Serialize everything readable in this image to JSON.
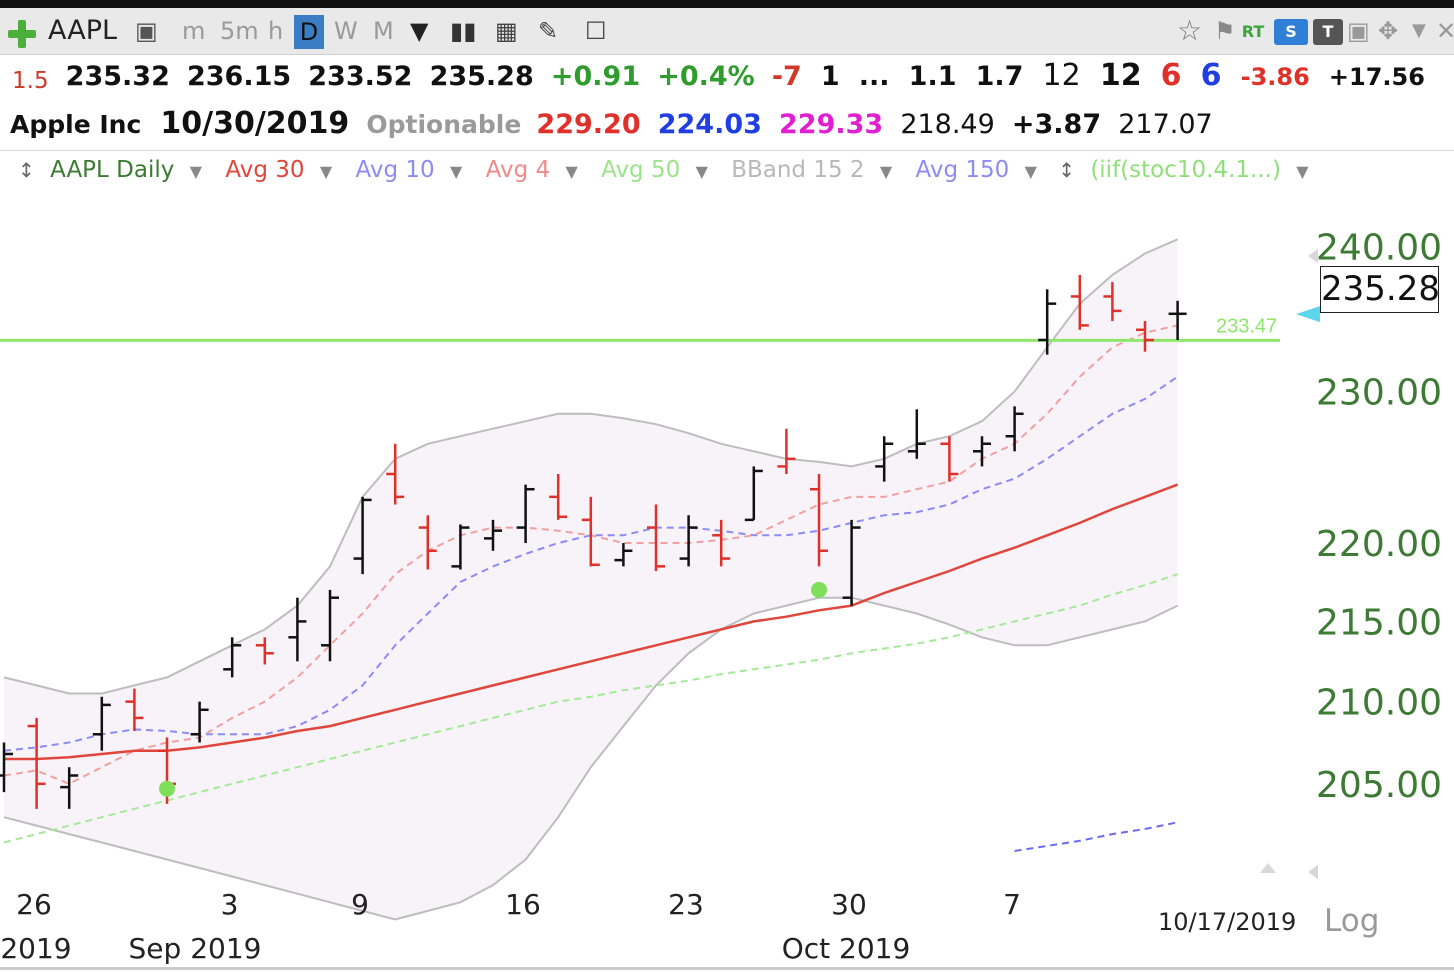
{
  "toolbar": {
    "symbol": "AAPL",
    "intervals": [
      "m",
      "5m",
      "h",
      "D",
      "W",
      "M"
    ],
    "selected_interval": "D",
    "rt_label": "RT",
    "s_label": "S",
    "t_label": "T"
  },
  "quote_row": {
    "lead": "1.5",
    "open": "235.32",
    "high": "236.15",
    "low": "233.52",
    "close": "235.28",
    "change": "+0.91",
    "change_pct": "+0.4%",
    "v1": "-7",
    "v2": "1",
    "v3": "...",
    "v4": "1.1",
    "v5": "1.7",
    "v6": "12",
    "v7": "12",
    "v8": "6",
    "v9": "6",
    "v10": "-3.86",
    "v11": "+17.56"
  },
  "info_row": {
    "name": "Apple Inc",
    "date": "10/30/2019",
    "optionable": "Optionable",
    "a": "229.20",
    "b": "224.03",
    "c": "229.33",
    "d": "218.49",
    "e": "+3.87",
    "f": "217.07"
  },
  "legend": {
    "main": "AAPL Daily",
    "items": [
      {
        "label": "Avg 30",
        "color": "#e0463c"
      },
      {
        "label": "Avg 10",
        "color": "#8c8cf2"
      },
      {
        "label": "Avg 4",
        "color": "#f08a8a"
      },
      {
        "label": "Avg 50",
        "color": "#9be38a"
      },
      {
        "label": "BBand 15 2",
        "color": "#b8b8b8"
      },
      {
        "label": "Avg 150",
        "color": "#8c8cf2"
      }
    ],
    "indicator": "(iif(stoc10.4.1...)",
    "indicator_color": "#8fe07a"
  },
  "colors": {
    "up_bar": "#111111",
    "down_bar": "#e0302a",
    "avg30": "#e0463c",
    "avg10": "#8c8cf2",
    "avg4": "#f0a0a0",
    "avg50": "#a6e89a",
    "avg150": "#6b6bf0",
    "bband": "#bdbdbd",
    "band_fill": "#f7f3f8",
    "level_line": "#8ee66a",
    "signal_dot": "#7ee05a",
    "axis_text": "#3d7a34"
  },
  "chart_data": {
    "type": "ohlc",
    "price_axis": {
      "ticks": [
        "240.00",
        "230.00",
        "220.00",
        "215.00",
        "210.00",
        "205.00"
      ],
      "range": [
        200,
        244
      ]
    },
    "last_price": "235.28",
    "level_line_value": 233.47,
    "level_line_label": "233.47",
    "x_ticks": [
      {
        "label": "26",
        "bar": 0
      },
      {
        "label": "3",
        "bar": 6
      },
      {
        "label": "9",
        "bar": 10
      },
      {
        "label": "16",
        "bar": 15
      },
      {
        "label": "23",
        "bar": 20
      },
      {
        "label": "30",
        "bar": 25
      },
      {
        "label": "7",
        "bar": 30
      }
    ],
    "month_labels": [
      {
        "label": "2019",
        "bar": 1
      },
      {
        "label": "Sep 2019",
        "bar": 6
      },
      {
        "label": "Oct 2019",
        "bar": 26
      }
    ],
    "bottom_date": "10/17/2019",
    "scale_label": "Log",
    "bars": [
      {
        "o": 205.5,
        "h": 207.5,
        "l": 204.5,
        "c": 206.8,
        "dir": "up"
      },
      {
        "o": 208.5,
        "h": 209.0,
        "l": 203.5,
        "c": 205.0,
        "dir": "down"
      },
      {
        "o": 204.8,
        "h": 206.0,
        "l": 203.5,
        "c": 205.5,
        "dir": "up"
      },
      {
        "o": 208.0,
        "h": 210.3,
        "l": 207.0,
        "c": 209.8,
        "dir": "up"
      },
      {
        "o": 210.0,
        "h": 210.8,
        "l": 208.2,
        "c": 209.0,
        "dir": "down"
      },
      {
        "o": 207.0,
        "h": 207.8,
        "l": 203.8,
        "c": 205.0,
        "dir": "down"
      },
      {
        "o": 208.0,
        "h": 210.0,
        "l": 207.5,
        "c": 209.5,
        "dir": "up"
      },
      {
        "o": 212.0,
        "h": 214.0,
        "l": 211.5,
        "c": 213.5,
        "dir": "up"
      },
      {
        "o": 213.5,
        "h": 214.0,
        "l": 212.3,
        "c": 213.0,
        "dir": "down"
      },
      {
        "o": 214.0,
        "h": 216.5,
        "l": 212.5,
        "c": 215.0,
        "dir": "up"
      },
      {
        "o": 213.5,
        "h": 217.0,
        "l": 212.5,
        "c": 216.5,
        "dir": "up"
      },
      {
        "o": 219.0,
        "h": 223.0,
        "l": 218.0,
        "c": 222.8,
        "dir": "up"
      },
      {
        "o": 224.5,
        "h": 226.5,
        "l": 222.5,
        "c": 223.0,
        "dir": "down"
      },
      {
        "o": 221.0,
        "h": 221.8,
        "l": 218.3,
        "c": 219.5,
        "dir": "down"
      },
      {
        "o": 218.5,
        "h": 221.2,
        "l": 218.3,
        "c": 221.0,
        "dir": "up"
      },
      {
        "o": 220.3,
        "h": 221.5,
        "l": 219.5,
        "c": 220.8,
        "dir": "up"
      },
      {
        "o": 221.0,
        "h": 223.8,
        "l": 220.0,
        "c": 223.5,
        "dir": "up"
      },
      {
        "o": 223.0,
        "h": 224.5,
        "l": 221.5,
        "c": 221.7,
        "dir": "down"
      },
      {
        "o": 221.5,
        "h": 223.0,
        "l": 218.5,
        "c": 218.6,
        "dir": "down"
      },
      {
        "o": 218.9,
        "h": 220.0,
        "l": 218.5,
        "c": 219.5,
        "dir": "up"
      },
      {
        "o": 221.0,
        "h": 222.5,
        "l": 218.2,
        "c": 218.5,
        "dir": "down"
      },
      {
        "o": 219.0,
        "h": 221.8,
        "l": 218.5,
        "c": 221.0,
        "dir": "up"
      },
      {
        "o": 220.5,
        "h": 221.5,
        "l": 218.5,
        "c": 219.0,
        "dir": "down"
      },
      {
        "o": 221.5,
        "h": 225.0,
        "l": 221.5,
        "c": 224.7,
        "dir": "up"
      },
      {
        "o": 225.0,
        "h": 227.5,
        "l": 224.5,
        "c": 225.5,
        "dir": "down"
      },
      {
        "o": 223.5,
        "h": 224.5,
        "l": 218.5,
        "c": 219.5,
        "dir": "down"
      },
      {
        "o": 216.5,
        "h": 221.5,
        "l": 216.0,
        "c": 221.0,
        "dir": "up"
      },
      {
        "o": 225.0,
        "h": 227.0,
        "l": 224.0,
        "c": 226.5,
        "dir": "up"
      },
      {
        "o": 226.0,
        "h": 228.8,
        "l": 225.5,
        "c": 226.5,
        "dir": "up"
      },
      {
        "o": 226.5,
        "h": 227.0,
        "l": 224.0,
        "c": 224.5,
        "dir": "down"
      },
      {
        "o": 226.0,
        "h": 227.0,
        "l": 225.0,
        "c": 226.5,
        "dir": "up"
      },
      {
        "o": 227.0,
        "h": 229.0,
        "l": 226.0,
        "c": 228.5,
        "dir": "up"
      },
      {
        "o": 233.5,
        "h": 237.0,
        "l": 232.5,
        "c": 236.0,
        "dir": "up"
      },
      {
        "o": 236.5,
        "h": 238.0,
        "l": 234.2,
        "c": 234.5,
        "dir": "down"
      },
      {
        "o": 236.5,
        "h": 237.5,
        "l": 234.8,
        "c": 235.5,
        "dir": "down"
      },
      {
        "o": 234.2,
        "h": 234.8,
        "l": 232.7,
        "c": 233.5,
        "dir": "down"
      },
      {
        "o": 235.3,
        "h": 236.2,
        "l": 233.5,
        "c": 235.3,
        "dir": "up"
      }
    ],
    "avg30": [
      206.5,
      206.5,
      206.6,
      206.8,
      207.0,
      207.0,
      207.2,
      207.5,
      207.8,
      208.2,
      208.5,
      209.0,
      209.5,
      210.0,
      210.5,
      211.0,
      211.5,
      212.0,
      212.5,
      213.0,
      213.5,
      214.0,
      214.5,
      215.0,
      215.3,
      215.7,
      216.0,
      216.8,
      217.5,
      218.2,
      219.0,
      219.7,
      220.5,
      221.3,
      222.2,
      223.0,
      223.8
    ],
    "avg10": [
      207.0,
      207.2,
      207.5,
      208.0,
      208.3,
      208.2,
      208.0,
      208.0,
      208.0,
      208.5,
      209.5,
      211.0,
      213.5,
      215.5,
      217.5,
      218.5,
      219.3,
      220.0,
      220.5,
      220.5,
      221.0,
      221.0,
      220.8,
      220.5,
      220.5,
      220.8,
      221.3,
      221.8,
      222.0,
      222.5,
      223.5,
      224.2,
      225.5,
      227.0,
      228.5,
      229.5,
      231.0
    ],
    "avg4": [
      205.5,
      205.8,
      205.0,
      206.0,
      207.0,
      207.5,
      207.8,
      209.0,
      210.0,
      211.5,
      213.5,
      215.5,
      218.0,
      219.5,
      220.5,
      221.0,
      221.0,
      220.8,
      220.5,
      220.0,
      220.0,
      220.0,
      220.2,
      220.5,
      221.5,
      222.5,
      223.0,
      223.0,
      223.5,
      224.0,
      225.5,
      226.5,
      228.5,
      231.0,
      233.0,
      234.0,
      234.5
    ],
    "avg50": [
      201.5,
      202.0,
      202.5,
      203.0,
      203.5,
      204.0,
      204.5,
      205.0,
      205.5,
      206.0,
      206.5,
      207.0,
      207.5,
      208.0,
      208.5,
      209.0,
      209.5,
      210.0,
      210.3,
      210.7,
      211.0,
      211.3,
      211.7,
      212.0,
      212.3,
      212.6,
      213.0,
      213.3,
      213.6,
      214.0,
      214.5,
      215.0,
      215.5,
      216.0,
      216.7,
      217.3,
      218.0
    ],
    "avg150": [
      null,
      null,
      null,
      null,
      null,
      null,
      null,
      null,
      null,
      null,
      null,
      null,
      null,
      null,
      null,
      null,
      null,
      null,
      null,
      null,
      null,
      null,
      null,
      null,
      null,
      null,
      null,
      null,
      null,
      null,
      null,
      201.0,
      201.3,
      201.6,
      202.0,
      202.3,
      202.7
    ],
    "bband_upper": [
      211.5,
      211.0,
      210.5,
      210.5,
      211.0,
      211.5,
      212.5,
      213.5,
      214.5,
      216.0,
      218.5,
      223.0,
      225.5,
      226.5,
      227.0,
      227.5,
      228.0,
      228.5,
      228.5,
      228.2,
      227.8,
      227.2,
      226.5,
      226.0,
      225.5,
      225.3,
      225.0,
      225.5,
      226.5,
      227.0,
      228.0,
      230.0,
      233.0,
      236.0,
      238.0,
      239.5,
      240.5
    ],
    "bband_lower": [
      203.0,
      202.5,
      202.0,
      201.5,
      201.0,
      200.5,
      200.0,
      199.5,
      199.0,
      198.5,
      198.0,
      197.5,
      197.0,
      197.5,
      198.0,
      199.0,
      200.5,
      203.0,
      206.0,
      208.5,
      211.0,
      213.0,
      214.5,
      215.5,
      216.0,
      216.5,
      216.5,
      216.0,
      215.5,
      214.8,
      214.0,
      213.5,
      213.5,
      214.0,
      214.5,
      215.0,
      216.0
    ],
    "signals": [
      {
        "bar": 5,
        "value": 204.7
      },
      {
        "bar": 25,
        "value": 217.0
      }
    ]
  }
}
